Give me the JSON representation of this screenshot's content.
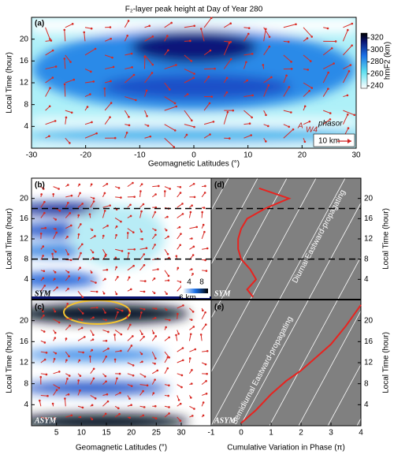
{
  "chart_data": [
    {
      "type": "heatmap",
      "title": "F₂-layer peak height at Day of Year 280",
      "panel_label": "(a)",
      "xlabel": "Geomagnetic Latitudes (°)",
      "ylabel": "Local Time (hour)",
      "xlim": [
        -30,
        30
      ],
      "xticks": [
        -30,
        -20,
        -10,
        0,
        10,
        20,
        30
      ],
      "ylim": [
        0,
        24
      ],
      "yticks": [
        4,
        8,
        12,
        16,
        20
      ],
      "colorbar": {
        "label": "hmF2 (km)",
        "lim": [
          236,
          328
        ],
        "ticks": [
          240,
          260,
          280,
          300,
          320
        ]
      },
      "annotations": [
        "A",
        "W4",
        "phasor",
        "10 km"
      ]
    },
    {
      "type": "heatmap",
      "panel_label": "(b)",
      "ylabel": "Local Time (hour)",
      "ylim": [
        0,
        24
      ],
      "yticks": [
        4,
        8,
        12,
        16,
        20
      ],
      "corner_label": "SYM",
      "colorbar": {
        "lim": [
          2,
          10
        ],
        "ticks": [
          4,
          8
        ],
        "scale_label": "6 km"
      }
    },
    {
      "type": "heatmap",
      "panel_label": "(c)",
      "xlabel": "Geomagnetic Latitudes (°)",
      "ylabel": "Local Time (hour)",
      "xlim": [
        0,
        36
      ],
      "xticks": [
        5,
        10,
        15,
        20,
        25,
        30
      ],
      "ylim": [
        0,
        24
      ],
      "yticks": [
        4,
        8,
        12,
        16,
        20
      ],
      "corner_label": "ASYM"
    },
    {
      "type": "line",
      "panel_label": "(d)",
      "ylabel": "Local Time (hour)",
      "xlim": [
        -1,
        4
      ],
      "ylim": [
        0,
        24
      ],
      "yticks": [
        4,
        8,
        12,
        16,
        20
      ],
      "corner_label": "SYM",
      "annotation": "Diurnal Eastward-propagating",
      "dashed_lines": [
        8,
        18
      ],
      "series": [
        {
          "color": "#e8231f",
          "x": [
            0.4,
            0.2,
            0.5,
            0.3,
            0.0,
            -0.1,
            -0.1,
            0.0,
            0.2,
            0.8,
            1.6,
            0.6
          ],
          "y": [
            0.5,
            2,
            4,
            6,
            8,
            10,
            12,
            14,
            16,
            18,
            20,
            22
          ]
        }
      ]
    },
    {
      "type": "line",
      "panel_label": "(e)",
      "xlabel": "Cumulative Variation in Phase (π)",
      "ylabel": "Local Time (hour)",
      "xlim": [
        -1,
        4
      ],
      "xticks": [
        -1,
        0,
        1,
        2,
        3,
        4
      ],
      "ylim": [
        0,
        24
      ],
      "yticks": [
        4,
        8,
        12,
        16,
        20
      ],
      "corner_label": "ASYM",
      "annotation": "Semidiurnal Eastward-propagating",
      "series": [
        {
          "color": "#e8231f",
          "x": [
            0,
            0.5,
            1.0,
            1.5,
            2.0,
            2.5,
            3.0,
            3.5,
            4.0
          ],
          "y": [
            0.5,
            3,
            6,
            8.5,
            10.5,
            13,
            15.5,
            19,
            23
          ]
        }
      ]
    }
  ]
}
